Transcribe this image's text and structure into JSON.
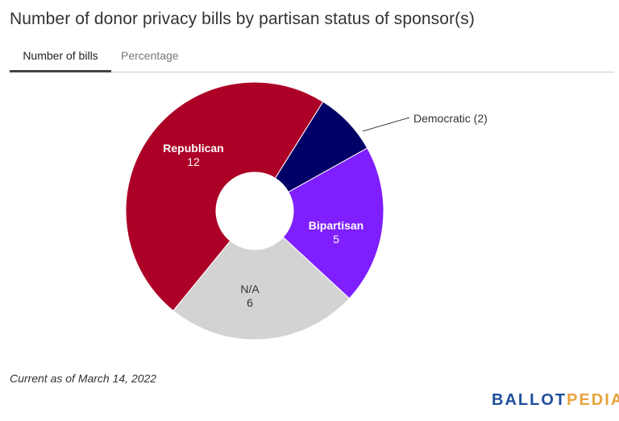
{
  "title": "Number of donor privacy bills by partisan status of sponsor(s)",
  "tabs": [
    {
      "label": "Number of bills",
      "active": true
    },
    {
      "label": "Percentage",
      "active": false
    }
  ],
  "chart_data": {
    "type": "pie",
    "donut": true,
    "slices": [
      {
        "label": "Democratic",
        "value": 2,
        "color": "#000066"
      },
      {
        "label": "Bipartisan",
        "value": 5,
        "color": "#7f1fff"
      },
      {
        "label": "N/A",
        "value": 6,
        "color": "#d3d3d3"
      },
      {
        "label": "Republican",
        "value": 12,
        "color": "#ac0026"
      }
    ]
  },
  "labels": {
    "democratic": "Democratic (2)",
    "bipartisan_name": "Bipartisan",
    "bipartisan_value": "5",
    "na_name": "N/A",
    "na_value": "6",
    "republican_name": "Republican",
    "republican_value": "12"
  },
  "footnote": "Current as of March 14, 2022",
  "logo": {
    "part1": "BALLOT",
    "part2": "PEDIA"
  }
}
